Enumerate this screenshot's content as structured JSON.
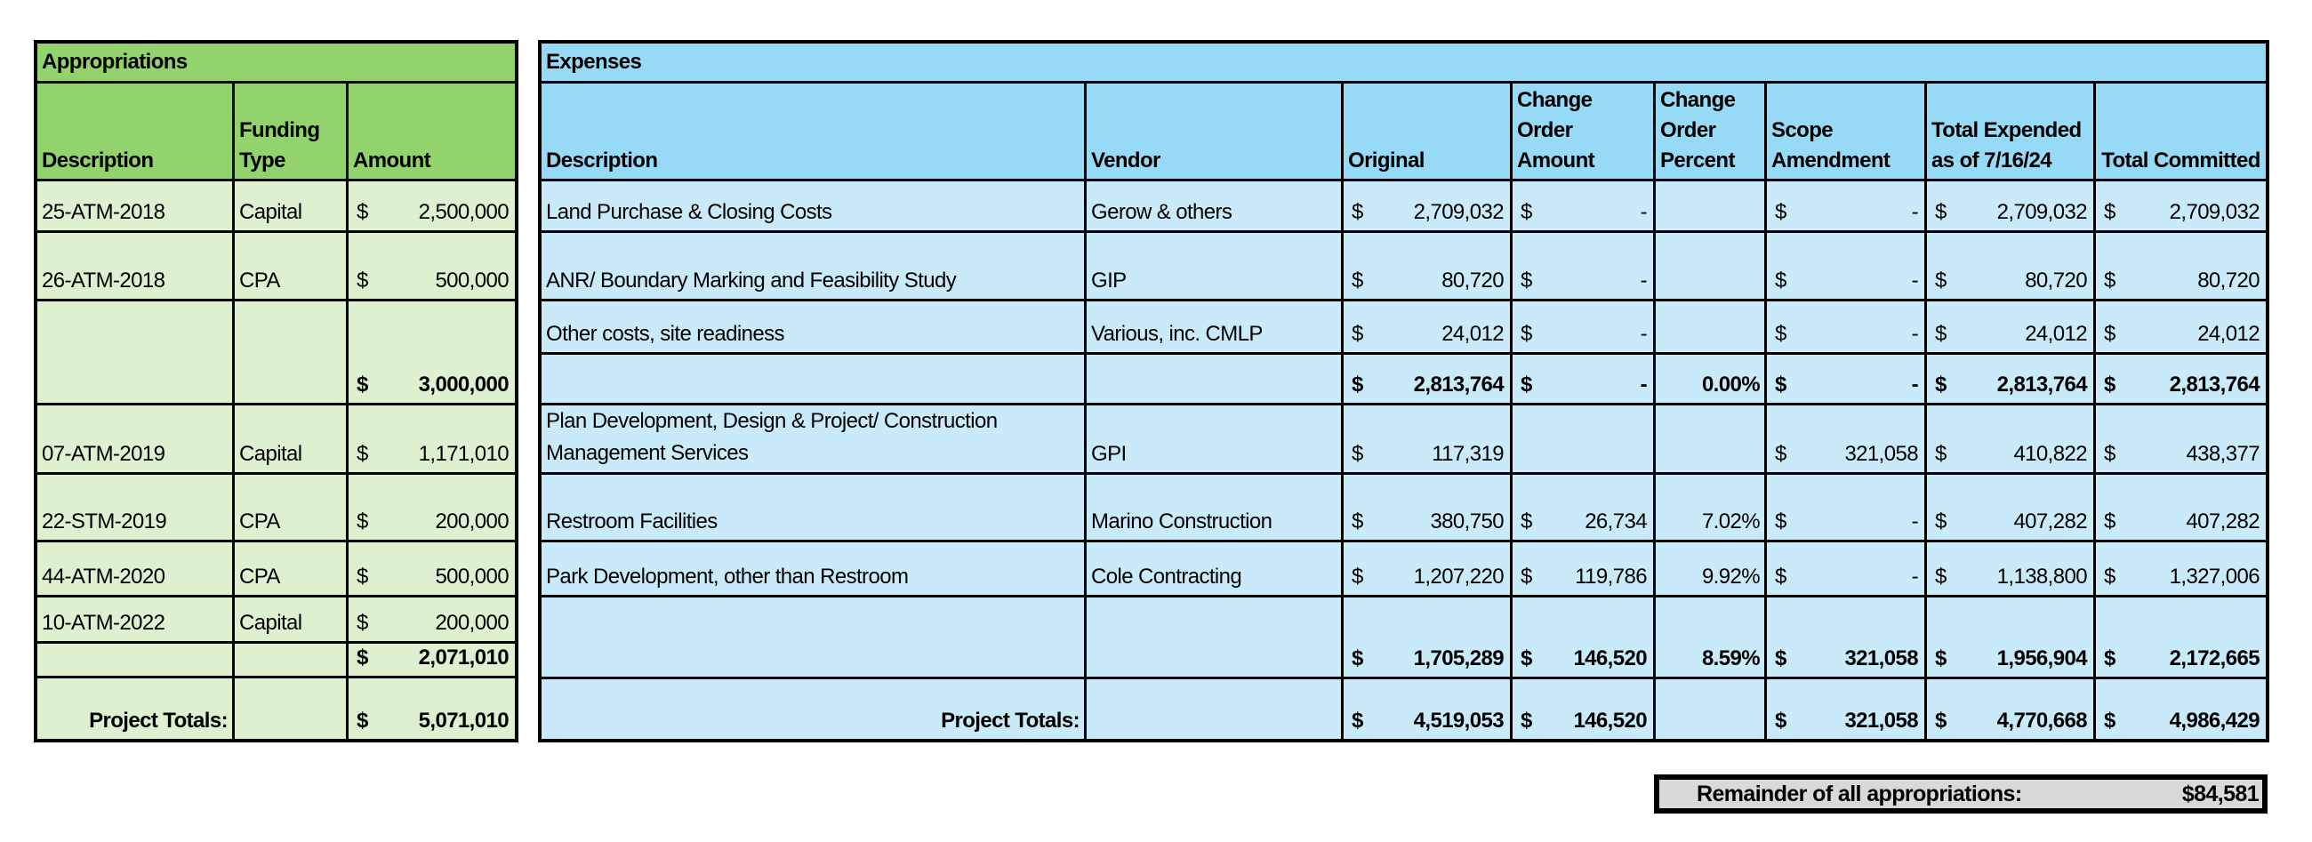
{
  "appropriations": {
    "title": "Appropriations",
    "headers": {
      "description": "Description",
      "funding_type": "Funding Type",
      "amount": "Amount"
    },
    "rows": [
      {
        "description": "25-ATM-2018",
        "funding_type": "Capital",
        "currency": "$",
        "amount": "2,500,000"
      },
      {
        "description": "26-ATM-2018",
        "funding_type": "CPA",
        "currency": "$",
        "amount": "500,000"
      },
      {
        "description": "",
        "funding_type": "",
        "currency": "$",
        "amount": "3,000,000",
        "subtotal": true
      },
      {
        "description": "07-ATM-2019",
        "funding_type": "Capital",
        "currency": "$",
        "amount": "1,171,010"
      },
      {
        "description": "22-STM-2019",
        "funding_type": "CPA",
        "currency": "$",
        "amount": "200,000"
      },
      {
        "description": "44-ATM-2020",
        "funding_type": "CPA",
        "currency": "$",
        "amount": "500,000"
      },
      {
        "description": "10-ATM-2022",
        "funding_type": "Capital",
        "currency": "$",
        "amount": "200,000"
      },
      {
        "description": "",
        "funding_type": "",
        "currency": "$",
        "amount": "2,071,010",
        "subtotal": true
      }
    ],
    "totals": {
      "label": "Project Totals:",
      "currency": "$",
      "amount": "5,071,010"
    }
  },
  "expenses": {
    "title": "Expenses",
    "headers": {
      "description": "Description",
      "vendor": "Vendor",
      "original": "Original",
      "change_order_amount": "Change Order Amount",
      "change_order_percent": "Change Order Percent",
      "scope_amendment": "Scope Amendment",
      "total_expended": "Total Expended as of 7/16/24",
      "total_committed": "Total Committed"
    },
    "rows": [
      {
        "description": "Land Purchase & Closing Costs",
        "vendor": "Gerow & others",
        "original": "2,709,032",
        "change_order_amount": "-",
        "change_order_percent": "",
        "scope_amendment": "-",
        "total_expended": "2,709,032",
        "total_committed": "2,709,032"
      },
      {
        "description": "ANR/ Boundary Marking and Feasibility Study",
        "vendor": "GIP",
        "original": "80,720",
        "change_order_amount": "-",
        "change_order_percent": "",
        "scope_amendment": "-",
        "total_expended": "80,720",
        "total_committed": "80,720"
      },
      {
        "description": "Other costs, site readiness",
        "vendor": "Various, inc. CMLP",
        "original": "24,012",
        "change_order_amount": "-",
        "change_order_percent": "",
        "scope_amendment": "-",
        "total_expended": "24,012",
        "total_committed": "24,012"
      },
      {
        "description": "",
        "vendor": "",
        "original": "2,813,764",
        "change_order_amount": "-",
        "change_order_percent": "0.00%",
        "scope_amendment": "-",
        "total_expended": "2,813,764",
        "total_committed": "2,813,764",
        "subtotal": true
      },
      {
        "description": "Plan Development, Design & Project/ Construction Management Services",
        "vendor": "GPI",
        "original": "117,319",
        "change_order_amount": "",
        "change_order_percent": "",
        "scope_amendment": "321,058",
        "total_expended": "410,822",
        "total_committed": "438,377"
      },
      {
        "description": "Restroom Facilities",
        "vendor": "Marino Construction",
        "original": "380,750",
        "change_order_amount": "26,734",
        "change_order_percent": "7.02%",
        "scope_amendment": "-",
        "total_expended": "407,282",
        "total_committed": "407,282"
      },
      {
        "description": "Park Development, other than Restroom",
        "vendor": "Cole Contracting",
        "original": "1,207,220",
        "change_order_amount": "119,786",
        "change_order_percent": "9.92%",
        "scope_amendment": "-",
        "total_expended": "1,138,800",
        "total_committed": "1,327,006"
      },
      {
        "description": "",
        "vendor": "",
        "original": "1,705,289",
        "change_order_amount": "146,520",
        "change_order_percent": "8.59%",
        "scope_amendment": "321,058",
        "total_expended": "1,956,904",
        "total_committed": "2,172,665",
        "subtotal": true
      }
    ],
    "totals": {
      "label": "Project Totals:",
      "vendor": "",
      "original": "4,519,053",
      "change_order_amount": "146,520",
      "change_order_percent": "",
      "scope_amendment": "321,058",
      "total_expended": "4,770,668",
      "total_committed": "4,986,429"
    },
    "currency": "$"
  },
  "remainder": {
    "label": "Remainder of all appropriations:",
    "value": "$84,581"
  },
  "colors": {
    "appropriations_header": "#92d36e",
    "appropriations_body": "#ddf1d0",
    "expenses_header": "#97daf5",
    "expenses_body": "#c9ebf9",
    "remainder_bg": "#d9d9d9"
  }
}
